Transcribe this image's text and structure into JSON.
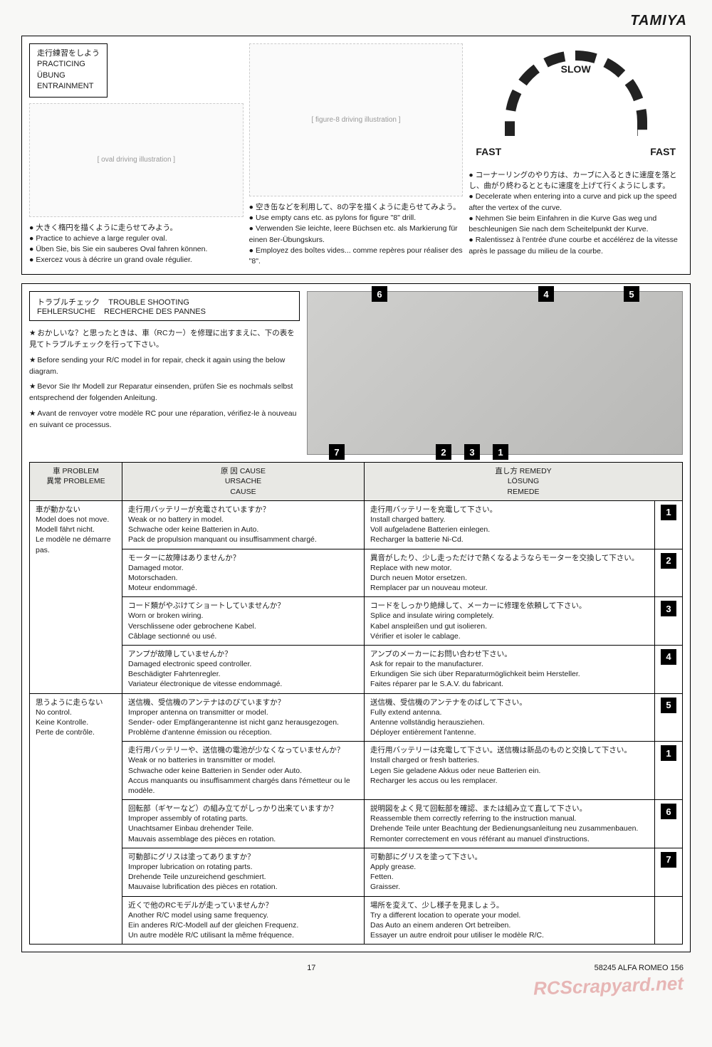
{
  "brand": "TAMIYA",
  "practice": {
    "title_jp": "走行練習をしよう",
    "title_en": "PRACTICING",
    "title_de": "ÜBUNG",
    "title_fr": "ENTRAINMENT",
    "col1": {
      "jp": "大きく楕円を描くように走らせてみよう。",
      "en": "Practice to achieve a large reguler oval.",
      "de": "Üben Sie, bis Sie ein sauberes Oval fahren können.",
      "fr": "Exercez vous à décrire un grand ovale régulier."
    },
    "col2": {
      "jp": "空き缶などを利用して、8の字を描くように走らせてみよう。",
      "en": "Use empty cans etc. as pylons for figure \"8\" drill.",
      "de": "Verwenden Sie leichte, leere Büchsen etc. als Markierung für einen 8er-Übungskurs.",
      "fr": "Employez des boîtes vides... comme repères pour réaliser des \"8\"."
    },
    "col3": {
      "slow": "SLOW",
      "fast_l": "FAST",
      "fast_r": "FAST",
      "jp": "コーナーリングのやり方は、カーブに入るときに速度を落とし、曲がり終わるとともに速度を上げて行くようにします。",
      "en": "Decelerate when entering into a curve and pick up the speed after the vertex of the curve.",
      "de": "Nehmen Sie beim Einfahren in die Kurve Gas weg und beschleunigen Sie nach dem Scheitelpunkt der Kurve.",
      "fr": "Ralentissez à l'entrée d'une courbe et accélérez de la vitesse après le passage du milieu de la courbe."
    }
  },
  "trouble": {
    "title_jp": "トラブルチェック",
    "title_en": "TROUBLE SHOOTING",
    "title_de": "FEHLERSUCHE",
    "title_fr": "RECHERCHE DES PANNES",
    "note_jp": "おかしいな？と思ったときは、車（RCカー）を修理に出すまえに、下の表を見てトラブルチェックを行って下さい。",
    "note_en": "Before sending your R/C model in for repair, check it again using the below diagram.",
    "note_de": "Bevor Sie Ihr Modell zur Reparatur einsenden, prüfen Sie es nochmals selbst entsprechend der folgenden Anleitung.",
    "note_fr": "Avant de renvoyer votre modèle RC pour une réparation, vérifiez-le à nouveau en suivant ce processus.",
    "photo_badges": {
      "b1": "1",
      "b2": "2",
      "b3": "3",
      "b4": "4",
      "b5": "5",
      "b6": "6",
      "b7": "7"
    }
  },
  "table": {
    "headers": {
      "problem": "車 PROBLEM\n異常 PROBLEME",
      "cause": "原 因 CAUSE\nURSACHE\nCAUSE",
      "remedy": "直し方 REMEDY\nLÖSUNG\nREMEDE"
    },
    "groups": [
      {
        "problem": "車が動かない\nModel does not move.\nModell fährt nicht.\nLe modèle ne démarre pas.",
        "rows": [
          {
            "cause": "走行用バッテリーが充電されていますか？\nWeak or no battery in model.\nSchwache oder keine Batterien in Auto.\nPack de propulsion manquant ou insuffisamment chargé.",
            "remedy": "走行用バッテリーを充電して下さい。\nInstall charged battery.\nVoll aufgeladene Batterien einlegen.\nRecharger la batterie Ni-Cd.",
            "num": "1"
          },
          {
            "cause": "モーターに故障はありませんか？\nDamaged motor.\nMotorschaden.\nMoteur endommagé.",
            "remedy": "異音がしたり、少し走っただけで熱くなるようならモーターを交換して下さい。\nReplace with new motor.\nDurch neuen Motor ersetzen.\nRemplacer par un nouveau moteur.",
            "num": "2"
          },
          {
            "cause": "コード類がやぶけてショートしていませんか？\nWorn or broken wiring.\nVerschlissene oder gebrochene Kabel.\nCâblage sectionné ou usé.",
            "remedy": "コードをしっかり絶縁して、メーカーに修理を依頼して下さい。\nSplice and insulate wiring completely.\nKabel anspleißen und gut isolieren.\nVérifier et isoler le cablage.",
            "num": "3"
          },
          {
            "cause": "アンプが故障していませんか？\nDamaged electronic speed controller.\nBeschädigter Fahrtenregler.\nVariateur électronique de vitesse endommagé.",
            "remedy": "アンプのメーカーにお問い合わせ下さい。\nAsk for repair to the manufacturer.\nErkundigen Sie sich über Reparaturmöglichkeit beim Hersteller.\nFaites réparer par le S.A.V. du fabricant.",
            "num": "4"
          }
        ]
      },
      {
        "problem": "思うように走らない\nNo control.\nKeine Kontrolle.\nPerte de contrôle.",
        "rows": [
          {
            "cause": "送信機、受信機のアンテナはのびていますか？\nImproper antenna on transmitter or model.\nSender- oder Empfängerantenne ist nicht ganz herausgezogen.\nProblème d'antenne émission ou réception.",
            "remedy": "送信機、受信機のアンテナをのばして下さい。\nFully extend antenna.\nAntenne vollständig herausziehen.\nDéployer entièrement l'antenne.",
            "num": "5"
          },
          {
            "cause": "走行用バッテリーや、送信機の電池が少なくなっていませんか？\nWeak or no batteries in transmitter or model.\nSchwache oder keine Batterien in Sender oder Auto.\nAccus manquants ou insuffisamment chargés dans l'émetteur ou le modèle.",
            "remedy": "走行用バッテリーは充電して下さい。送信機は新品のものと交換して下さい。\nInstall charged or fresh batteries.\nLegen Sie geladene Akkus oder neue Batterien ein.\nRecharger les accus ou les remplacer.",
            "num": "1"
          },
          {
            "cause": "回転部（ギヤーなど）の組み立てがしっかり出来ていますか？\nImproper assembly of rotating parts.\nUnachtsamer Einbau drehender Teile.\nMauvais assemblage des pièces en rotation.",
            "remedy": "説明図をよく見て回転部を確認、または組み立て直して下さい。\nReassemble them correctly referring to the instruction manual.\nDrehende Teile unter Beachtung der Bedienungsanleitung neu zusammenbauen.\nRemonter correctement en vous référant au manuel d'instructions.",
            "num": "6"
          },
          {
            "cause": "可動部にグリスは塗ってありますか？\nImproper lubrication on rotating parts.\nDrehende Teile unzureichend geschmiert.\nMauvaise lubrification des pièces en rotation.",
            "remedy": "可動部にグリスを塗って下さい。\nApply grease.\nFetten.\nGraisser.",
            "num": "7"
          },
          {
            "cause": "近くで他のRCモデルが走っていませんか？\nAnother R/C model using same frequency.\nEin anderes R/C-Modell auf der gleichen Frequenz.\nUn autre modèle R/C utilisant la même fréquence.",
            "remedy": "場所を変えて、少し様子を見ましょう。\nTry a different location to operate your model.\nDas Auto an einem anderen Ort betreiben.\nEssayer un autre endroit pour utiliser le modèle R/C.",
            "num": ""
          }
        ]
      }
    ]
  },
  "footer": {
    "page": "17",
    "model": "58245 ALFA ROMEO 156"
  },
  "watermark": "RCScrapyard.net"
}
